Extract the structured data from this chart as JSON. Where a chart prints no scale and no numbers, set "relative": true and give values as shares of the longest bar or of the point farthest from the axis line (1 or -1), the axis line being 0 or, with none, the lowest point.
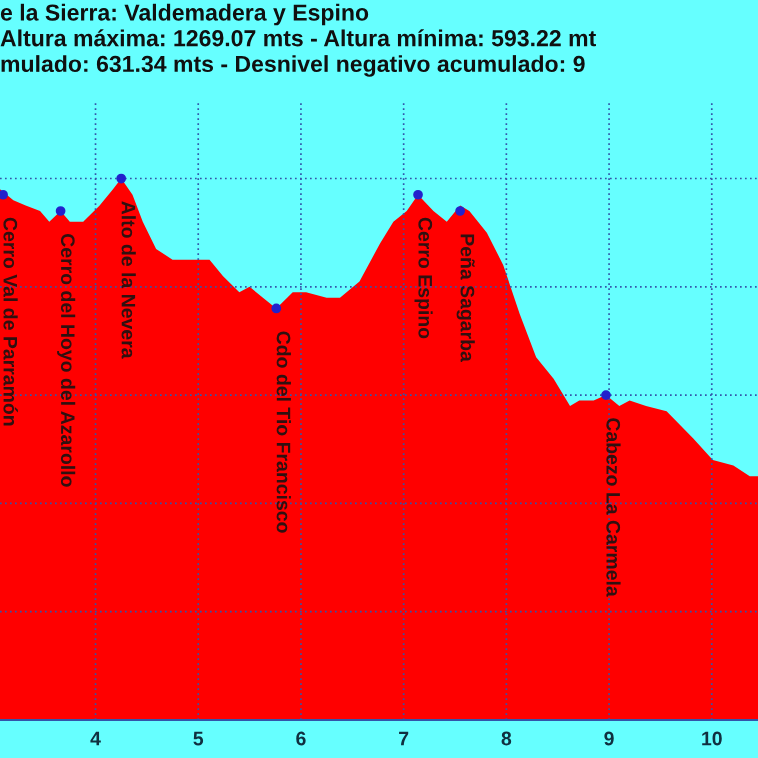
{
  "chart_data": {
    "type": "area",
    "relative": true,
    "title": "e la Sierra: Valdemadera y Espino\nAltura máxima: 1269.07 mts - Altura mínima: 593.22 mt\nmulado: 631.34 mts - Desnivel negativo acumulado: 9",
    "x": [
      3.07,
      3.2,
      3.32,
      3.46,
      3.55,
      3.66,
      3.75,
      3.88,
      4.04,
      4.17,
      4.25,
      4.36,
      4.46,
      4.59,
      4.75,
      5.01,
      5.11,
      5.24,
      5.4,
      5.5,
      5.63,
      5.76,
      5.92,
      6.05,
      6.25,
      6.38,
      6.57,
      6.77,
      6.9,
      7.03,
      7.14,
      7.29,
      7.42,
      7.55,
      7.64,
      7.81,
      7.97,
      8.13,
      8.29,
      8.46,
      8.62,
      8.71,
      8.85,
      8.97,
      9.1,
      9.2,
      9.36,
      9.56,
      9.82,
      10.01,
      10.21,
      10.37,
      10.45
    ],
    "series": [
      {
        "color": "#ff0000",
        "values": [
          0.98,
          0.96,
          0.95,
          0.94,
          0.92,
          0.94,
          0.92,
          0.92,
          0.95,
          0.98,
          1.0,
          0.97,
          0.92,
          0.87,
          0.85,
          0.85,
          0.85,
          0.82,
          0.79,
          0.8,
          0.78,
          0.76,
          0.79,
          0.79,
          0.78,
          0.78,
          0.81,
          0.88,
          0.92,
          0.94,
          0.97,
          0.94,
          0.92,
          0.95,
          0.94,
          0.9,
          0.84,
          0.75,
          0.67,
          0.63,
          0.58,
          0.59,
          0.59,
          0.6,
          0.58,
          0.59,
          0.58,
          0.57,
          0.52,
          0.48,
          0.47,
          0.45,
          0.45
        ]
      }
    ],
    "xlim": [
      3.07,
      10.45
    ],
    "xticks": [
      4,
      5,
      6,
      7,
      8,
      9,
      10
    ],
    "grid": true,
    "annotations": [
      {
        "text": "Cerro Val de Parramón",
        "x": 3.1,
        "y": 0.97
      },
      {
        "text": "Cerro del Hoyo del Azarollo",
        "x": 3.66,
        "y": 0.94
      },
      {
        "text": "Alto de la Nevera",
        "x": 4.25,
        "y": 1.0
      },
      {
        "text": "Cdo del Tio Francisco",
        "x": 5.76,
        "y": 0.76
      },
      {
        "text": "Cerro Espino",
        "x": 7.14,
        "y": 0.97
      },
      {
        "text": "Peña Sagarba",
        "x": 7.55,
        "y": 0.94
      },
      {
        "text": "Cabezo La Carmela",
        "x": 8.97,
        "y": 0.6
      }
    ]
  }
}
